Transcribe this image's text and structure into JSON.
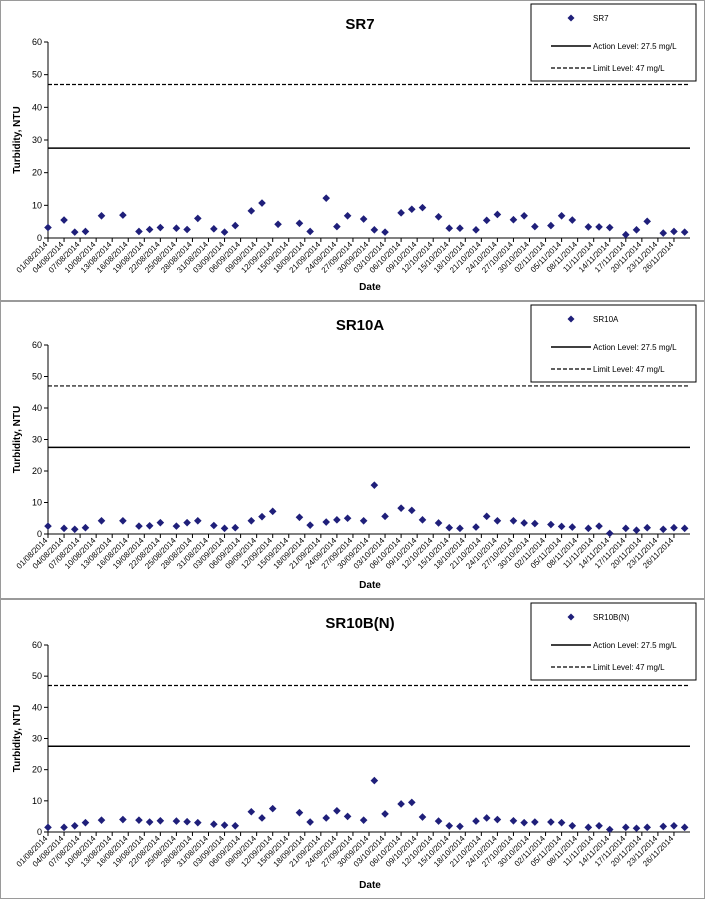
{
  "legend_labels": {
    "action": "Action Level: 27.5 mg/L",
    "limit": "Limit Level: 47 mg/L"
  },
  "chart_data": [
    {
      "type": "scatter",
      "title": "SR7",
      "xlabel": "Date",
      "ylabel": "Turbidity, NTU",
      "ylim": [
        0,
        60
      ],
      "yticks": [
        0,
        10,
        20,
        30,
        40,
        50,
        60
      ],
      "xlim": [
        "01/08/2014",
        "29/11/2014"
      ],
      "xticks": [
        "01/08/2014",
        "04/08/2014",
        "07/08/2014",
        "10/08/2014",
        "13/08/2014",
        "16/08/2014",
        "19/08/2014",
        "22/08/2014",
        "25/08/2014",
        "28/08/2014",
        "31/08/2014",
        "03/09/2014",
        "06/09/2014",
        "09/09/2014",
        "12/09/2014",
        "15/09/2014",
        "18/09/2014",
        "21/09/2014",
        "24/09/2014",
        "27/09/2014",
        "30/09/2014",
        "03/10/2014",
        "06/10/2014",
        "09/10/2014",
        "12/10/2014",
        "15/10/2014",
        "18/10/2014",
        "21/10/2014",
        "24/10/2014",
        "27/10/2014",
        "30/10/2014",
        "02/11/2014",
        "05/11/2014",
        "08/11/2014",
        "11/11/2014",
        "14/11/2014",
        "17/11/2014",
        "20/11/2014",
        "23/11/2014",
        "26/11/2014"
      ],
      "grid": false,
      "legend_position": "top-right",
      "reference_lines": [
        {
          "name": "Action Level: 27.5 mg/L",
          "y": 27.5,
          "style": "solid"
        },
        {
          "name": "Limit Level: 47 mg/L",
          "y": 47,
          "style": "dashed"
        }
      ],
      "series": [
        {
          "name": "SR7",
          "color": "#1f1f7a",
          "marker": "diamond",
          "x": [
            "01/08/2014",
            "04/08/2014",
            "06/08/2014",
            "08/08/2014",
            "11/08/2014",
            "15/08/2014",
            "18/08/2014",
            "20/08/2014",
            "22/08/2014",
            "25/08/2014",
            "27/08/2014",
            "29/08/2014",
            "01/09/2014",
            "03/09/2014",
            "05/09/2014",
            "08/09/2014",
            "10/09/2014",
            "13/09/2014",
            "17/09/2014",
            "19/09/2014",
            "22/09/2014",
            "24/09/2014",
            "26/09/2014",
            "29/09/2014",
            "01/10/2014",
            "03/10/2014",
            "06/10/2014",
            "08/10/2014",
            "10/10/2014",
            "13/10/2014",
            "15/10/2014",
            "17/10/2014",
            "20/10/2014",
            "22/10/2014",
            "24/10/2014",
            "27/10/2014",
            "29/10/2014",
            "31/10/2014",
            "03/11/2014",
            "05/11/2014",
            "07/11/2014",
            "10/11/2014",
            "12/11/2014",
            "14/11/2014",
            "17/11/2014",
            "19/11/2014",
            "21/11/2014",
            "24/11/2014",
            "26/11/2014",
            "28/11/2014"
          ],
          "y": [
            3.2,
            5.5,
            1.8,
            2.0,
            6.8,
            7.0,
            2.0,
            2.6,
            3.2,
            3.0,
            2.6,
            6.0,
            2.8,
            1.8,
            3.8,
            8.3,
            10.7,
            4.2,
            4.5,
            2.0,
            12.2,
            3.5,
            6.8,
            5.8,
            2.5,
            1.8,
            7.7,
            8.8,
            9.3,
            6.5,
            3.0,
            3.0,
            2.5,
            5.4,
            7.2,
            5.6,
            6.8,
            3.5,
            3.8,
            6.8,
            5.5,
            3.4,
            3.4,
            3.2,
            1.0,
            2.5,
            5.1,
            1.5,
            2.0,
            1.8
          ]
        }
      ]
    },
    {
      "type": "scatter",
      "title": "SR10A",
      "xlabel": "Date",
      "ylabel": "Turbidity, NTU",
      "ylim": [
        0,
        60
      ],
      "yticks": [
        0,
        10,
        20,
        30,
        40,
        50,
        60
      ],
      "xlim": [
        "01/08/2014",
        "29/11/2014"
      ],
      "xticks": [
        "01/08/2014",
        "04/08/2014",
        "07/08/2014",
        "10/08/2014",
        "13/08/2014",
        "16/08/2014",
        "19/08/2014",
        "22/08/2014",
        "25/08/2014",
        "28/08/2014",
        "31/08/2014",
        "03/09/2014",
        "06/09/2014",
        "09/09/2014",
        "12/09/2014",
        "15/09/2014",
        "18/09/2014",
        "21/09/2014",
        "24/09/2014",
        "27/09/2014",
        "30/09/2014",
        "03/10/2014",
        "06/10/2014",
        "09/10/2014",
        "12/10/2014",
        "15/10/2014",
        "18/10/2014",
        "21/10/2014",
        "24/10/2014",
        "27/10/2014",
        "30/10/2014",
        "02/11/2014",
        "05/11/2014",
        "08/11/2014",
        "11/11/2014",
        "14/11/2014",
        "17/11/2014",
        "20/11/2014",
        "23/11/2014",
        "26/11/2014"
      ],
      "grid": false,
      "legend_position": "top-right",
      "reference_lines": [
        {
          "name": "Action Level: 27.5 mg/L",
          "y": 27.5,
          "style": "solid"
        },
        {
          "name": "Limit Level: 47 mg/L",
          "y": 47,
          "style": "dashed"
        }
      ],
      "series": [
        {
          "name": "SR10A",
          "color": "#1f1f7a",
          "marker": "diamond",
          "x": [
            "01/08/2014",
            "04/08/2014",
            "06/08/2014",
            "08/08/2014",
            "11/08/2014",
            "15/08/2014",
            "18/08/2014",
            "20/08/2014",
            "22/08/2014",
            "25/08/2014",
            "27/08/2014",
            "29/08/2014",
            "01/09/2014",
            "03/09/2014",
            "05/09/2014",
            "08/09/2014",
            "10/09/2014",
            "12/09/2014",
            "17/09/2014",
            "19/09/2014",
            "22/09/2014",
            "24/09/2014",
            "26/09/2014",
            "29/09/2014",
            "01/10/2014",
            "03/10/2014",
            "06/10/2014",
            "08/10/2014",
            "10/10/2014",
            "13/10/2014",
            "15/10/2014",
            "17/10/2014",
            "20/10/2014",
            "22/10/2014",
            "24/10/2014",
            "27/10/2014",
            "29/10/2014",
            "31/10/2014",
            "03/11/2014",
            "05/11/2014",
            "07/11/2014",
            "10/11/2014",
            "12/11/2014",
            "14/11/2014",
            "17/11/2014",
            "19/11/2014",
            "21/11/2014",
            "24/11/2014",
            "26/11/2014",
            "28/11/2014"
          ],
          "y": [
            2.5,
            1.8,
            1.5,
            2.0,
            4.2,
            4.2,
            2.5,
            2.6,
            3.6,
            2.5,
            3.6,
            4.2,
            2.7,
            1.8,
            2.0,
            4.2,
            5.5,
            7.2,
            5.3,
            2.8,
            3.8,
            4.5,
            5.0,
            4.2,
            15.5,
            5.6,
            8.2,
            7.5,
            4.5,
            3.5,
            2.0,
            1.8,
            2.2,
            5.6,
            4.2,
            4.2,
            3.5,
            3.3,
            3.0,
            2.4,
            2.2,
            1.8,
            2.5,
            0.2,
            1.8,
            1.2,
            2.0,
            1.5,
            2.0,
            1.8
          ]
        }
      ]
    },
    {
      "type": "scatter",
      "title": "SR10B(N)",
      "xlabel": "Date",
      "ylabel": "Turbidity, NTU",
      "ylim": [
        0,
        60
      ],
      "yticks": [
        0,
        10,
        20,
        30,
        40,
        50,
        60
      ],
      "xlim": [
        "01/08/2014",
        "29/11/2014"
      ],
      "xticks": [
        "01/08/2014",
        "04/08/2014",
        "07/08/2014",
        "10/08/2014",
        "13/08/2014",
        "16/08/2014",
        "19/08/2014",
        "22/08/2014",
        "25/08/2014",
        "28/08/2014",
        "31/08/2014",
        "03/09/2014",
        "06/09/2014",
        "09/09/2014",
        "12/09/2014",
        "15/09/2014",
        "18/09/2014",
        "21/09/2014",
        "24/09/2014",
        "27/09/2014",
        "30/09/2014",
        "03/10/2014",
        "06/10/2014",
        "09/10/2014",
        "12/10/2014",
        "15/10/2014",
        "18/10/2014",
        "21/10/2014",
        "24/10/2014",
        "27/10/2014",
        "30/10/2014",
        "02/11/2014",
        "05/11/2014",
        "08/11/2014",
        "11/11/2014",
        "14/11/2014",
        "17/11/2014",
        "20/11/2014",
        "23/11/2014",
        "26/11/2014"
      ],
      "grid": false,
      "legend_position": "top-right",
      "reference_lines": [
        {
          "name": "Action Level: 27.5 mg/L",
          "y": 27.5,
          "style": "solid"
        },
        {
          "name": "Limit Level: 47 mg/L",
          "y": 47,
          "style": "dashed"
        }
      ],
      "series": [
        {
          "name": "SR10B(N)",
          "color": "#1f1f7a",
          "marker": "diamond",
          "x": [
            "01/08/2014",
            "04/08/2014",
            "06/08/2014",
            "08/08/2014",
            "11/08/2014",
            "15/08/2014",
            "18/08/2014",
            "20/08/2014",
            "22/08/2014",
            "25/08/2014",
            "27/08/2014",
            "29/08/2014",
            "01/09/2014",
            "03/09/2014",
            "05/09/2014",
            "08/09/2014",
            "10/09/2014",
            "12/09/2014",
            "17/09/2014",
            "19/09/2014",
            "22/09/2014",
            "24/09/2014",
            "26/09/2014",
            "29/09/2014",
            "01/10/2014",
            "03/10/2014",
            "06/10/2014",
            "08/10/2014",
            "10/10/2014",
            "13/10/2014",
            "15/10/2014",
            "17/10/2014",
            "20/10/2014",
            "22/10/2014",
            "24/10/2014",
            "27/10/2014",
            "29/10/2014",
            "31/10/2014",
            "03/11/2014",
            "05/11/2014",
            "07/11/2014",
            "10/11/2014",
            "12/11/2014",
            "14/11/2014",
            "17/11/2014",
            "19/11/2014",
            "21/11/2014",
            "24/11/2014",
            "26/11/2014",
            "28/11/2014"
          ],
          "y": [
            1.5,
            1.5,
            2.0,
            3.0,
            3.8,
            4.0,
            3.8,
            3.2,
            3.6,
            3.5,
            3.3,
            3.0,
            2.5,
            2.2,
            2.0,
            6.5,
            4.5,
            7.5,
            6.2,
            3.2,
            4.5,
            6.8,
            5.0,
            3.8,
            16.5,
            5.8,
            9.0,
            9.5,
            4.8,
            3.5,
            2.0,
            1.8,
            3.5,
            4.5,
            4.0,
            3.6,
            3.0,
            3.2,
            3.2,
            3.0,
            2.0,
            1.5,
            2.0,
            0.8,
            1.5,
            1.2,
            1.5,
            1.8,
            2.0,
            1.5
          ]
        }
      ]
    }
  ]
}
